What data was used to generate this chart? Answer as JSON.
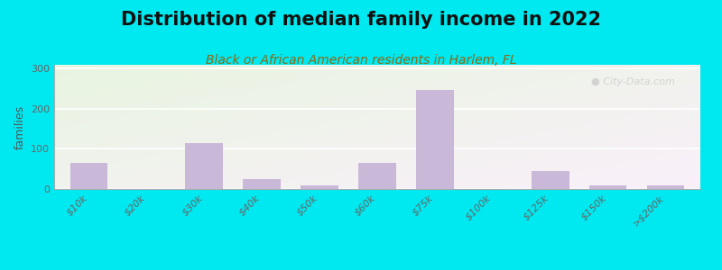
{
  "title": "Distribution of median family income in 2022",
  "subtitle": "Black or African American residents in Harlem, FL",
  "ylabel": "families",
  "categories": [
    "$10k",
    "$20k",
    "$30k",
    "$40k",
    "$50k",
    "$60k",
    "$75k",
    "$100k",
    "$125k",
    "$150k",
    ">$200k"
  ],
  "values": [
    65,
    0,
    115,
    25,
    10,
    65,
    248,
    0,
    45,
    10,
    10
  ],
  "bar_color": "#c9b8d8",
  "bg_outer": "#00e8f0",
  "yticks": [
    0,
    100,
    200,
    300
  ],
  "ylim": [
    0,
    310
  ],
  "title_fontsize": 15,
  "subtitle_fontsize": 10,
  "ylabel_fontsize": 9,
  "tick_fontsize": 8,
  "watermark": "City-Data.com",
  "subtitle_color": "#7a6000",
  "title_color": "#111111",
  "tick_color": "#666666",
  "ylabel_color": "#555555",
  "watermark_color": "#cccccc",
  "grid_color": "#ffffff",
  "spine_color": "#aaaaaa"
}
